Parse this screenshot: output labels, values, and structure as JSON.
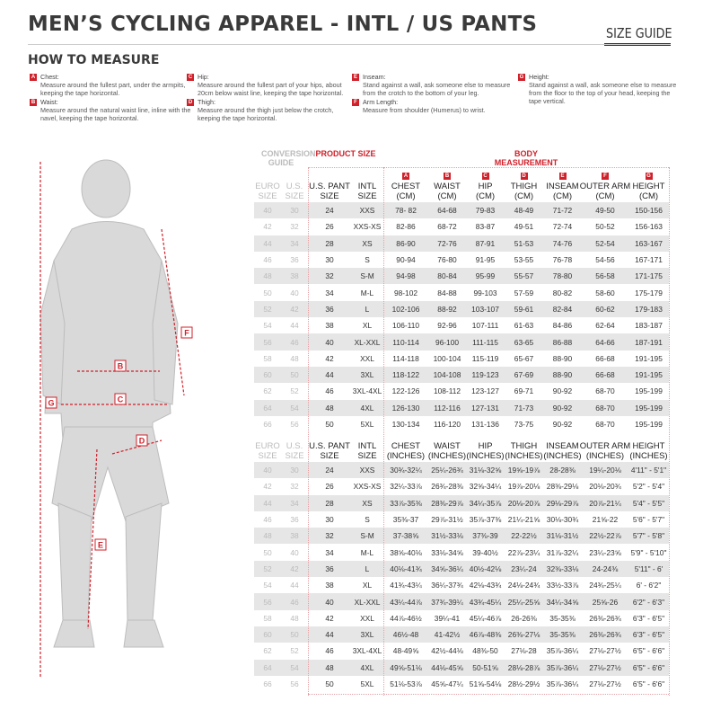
{
  "title": "MEN’S CYCLING APPAREL - INTL / US PANTS",
  "size_guide": "SIZE GUIDE",
  "how_to_measure": "HOW TO MEASURE",
  "instructions": [
    {
      "letter": "A",
      "label": "Chest:",
      "text": "Measure around the fullest part, under the armpits, keeping the tape horizontal."
    },
    {
      "letter": "B",
      "label": "Waist:",
      "text": "Measure around the natural waist line, inline with the navel, keeping the tape horizontal."
    },
    {
      "letter": "C",
      "label": "Hip:",
      "text": "Measure around the fullest part of your hips, about 20cm below waist line, keeping the tape horizontal."
    },
    {
      "letter": "D",
      "label": "Thigh:",
      "text": "Measure around the thigh just below the crotch, keeping the tape horizontal."
    },
    {
      "letter": "E",
      "label": "Inseam:",
      "text": "Stand against a wall, ask someone else to measure from the crotch to the bottom of your leg."
    },
    {
      "letter": "F",
      "label": "Arm Length:",
      "text": "Measure from shoulder (Humerus) to wrist."
    },
    {
      "letter": "G",
      "label": "Height:",
      "text": "Stand against a wall, ask someone else to measure from the floor to the top of your head, keeping the tape vertical."
    }
  ],
  "figure": {
    "labels": [
      "B",
      "C",
      "D",
      "E",
      "F",
      "G"
    ]
  },
  "colors": {
    "accent": "#d0202a",
    "row_shade": "#e6e6e6",
    "conversion_text": "#bbbbbb"
  },
  "groups": {
    "conversion": "CONVERSION GUIDE",
    "product": "PRODUCT SIZE",
    "body": "BODY MEASUREMENT"
  },
  "letters": [
    "A",
    "B",
    "C",
    "D",
    "E",
    "F",
    "G"
  ],
  "cm_headers": [
    "EURO SIZE",
    "U.S. SIZE",
    "U.S. PANT SIZE",
    "INTL SIZE",
    "CHEST (CM)",
    "WAIST (CM)",
    "HIP (CM)",
    "THIGH (CM)",
    "INSEAM (CM)",
    "OUTER ARM (CM)",
    "HEIGHT (CM)"
  ],
  "in_headers": [
    "EURO SIZE",
    "U.S. SIZE",
    "U.S. PANT SIZE",
    "INTL SIZE",
    "CHEST (INCHES)",
    "WAIST (INCHES)",
    "HIP (INCHES)",
    "THIGH (INCHES)",
    "INSEAM (INCHES)",
    "OUTER ARM (INCHES)",
    "HEIGHT (INCHES)"
  ],
  "cm_rows": [
    [
      "40",
      "30",
      "24",
      "XXS",
      "78- 82",
      "64-68",
      "79-83",
      "48-49",
      "71-72",
      "49-50",
      "150-156"
    ],
    [
      "42",
      "32",
      "26",
      "XXS-XS",
      "82-86",
      "68-72",
      "83-87",
      "49-51",
      "72-74",
      "50-52",
      "156-163"
    ],
    [
      "44",
      "34",
      "28",
      "XS",
      "86-90",
      "72-76",
      "87-91",
      "51-53",
      "74-76",
      "52-54",
      "163-167"
    ],
    [
      "46",
      "36",
      "30",
      "S",
      "90-94",
      "76-80",
      "91-95",
      "53-55",
      "76-78",
      "54-56",
      "167-171"
    ],
    [
      "48",
      "38",
      "32",
      "S-M",
      "94-98",
      "80-84",
      "95-99",
      "55-57",
      "78-80",
      "56-58",
      "171-175"
    ],
    [
      "50",
      "40",
      "34",
      "M-L",
      "98-102",
      "84-88",
      "99-103",
      "57-59",
      "80-82",
      "58-60",
      "175-179"
    ],
    [
      "52",
      "42",
      "36",
      "L",
      "102-106",
      "88-92",
      "103-107",
      "59-61",
      "82-84",
      "60-62",
      "179-183"
    ],
    [
      "54",
      "44",
      "38",
      "XL",
      "106-110",
      "92-96",
      "107-111",
      "61-63",
      "84-86",
      "62-64",
      "183-187"
    ],
    [
      "56",
      "46",
      "40",
      "XL-XXL",
      "110-114",
      "96-100",
      "111-115",
      "63-65",
      "86-88",
      "64-66",
      "187-191"
    ],
    [
      "58",
      "48",
      "42",
      "XXL",
      "114-118",
      "100-104",
      "115-119",
      "65-67",
      "88-90",
      "66-68",
      "191-195"
    ],
    [
      "60",
      "50",
      "44",
      "3XL",
      "118-122",
      "104-108",
      "119-123",
      "67-69",
      "88-90",
      "66-68",
      "191-195"
    ],
    [
      "62",
      "52",
      "46",
      "3XL-4XL",
      "122-126",
      "108-112",
      "123-127",
      "69-71",
      "90-92",
      "68-70",
      "195-199"
    ],
    [
      "64",
      "54",
      "48",
      "4XL",
      "126-130",
      "112-116",
      "127-131",
      "71-73",
      "90-92",
      "68-70",
      "195-199"
    ],
    [
      "66",
      "56",
      "50",
      "5XL",
      "130-134",
      "116-120",
      "131-136",
      "73-75",
      "90-92",
      "68-70",
      "195-199"
    ]
  ],
  "in_rows": [
    [
      "40",
      "30",
      "24",
      "XXS",
      "30¾-32¼",
      "25¼-26¾",
      "31⅛-32⅝",
      "19⅝-19⅞",
      "28-28⅜",
      "19¼-20⅛",
      "4'11\" - 5'1\""
    ],
    [
      "42",
      "32",
      "26",
      "XXS-XS",
      "32¼-33⅞",
      "26¾-28⅜",
      "32⅝-34¼",
      "19⅞-20⅛",
      "28⅜-29⅛",
      "20⅛-20¾",
      "5'2\" - 5'4\""
    ],
    [
      "44",
      "34",
      "28",
      "XS",
      "33⅞-35⅜",
      "28⅜-29⅞",
      "34¼-35⅞",
      "20⅛-20⅞",
      "29⅛-29⅞",
      "20⅞-21¼",
      "5'4\" - 5'5\""
    ],
    [
      "46",
      "36",
      "30",
      "S",
      "35⅜-37",
      "29⅞-31½",
      "35⅞-37⅜",
      "21¼-21⅝",
      "30⅛-30¾",
      "21⅝-22",
      "5'6\" - 5'7\""
    ],
    [
      "48",
      "38",
      "32",
      "S-M",
      "37-38⅝",
      "31½-33⅛",
      "37⅜-39",
      "22-22½",
      "31⅛-31½",
      "22½-22⅞",
      "5'7\" - 5'8\""
    ],
    [
      "50",
      "40",
      "34",
      "M-L",
      "38⅝-40⅛",
      "33⅛-34⅝",
      "39-40½",
      "22⅞-23¼",
      "31⅞-32¼",
      "23¼-23⅝",
      "5'9\" - 5'10\""
    ],
    [
      "52",
      "42",
      "36",
      "L",
      "40⅛-41¾",
      "34⅝-36¼",
      "40½-42⅛",
      "23¼-24",
      "32⅜-33⅛",
      "24-24⅜",
      "5'11\" - 6'"
    ],
    [
      "54",
      "44",
      "38",
      "XL",
      "41¾-43¼",
      "36¼-37¾",
      "42⅛-43¾",
      "24⅛-24¾",
      "33½-33⅞",
      "24¾-25¼",
      "6' - 6'2\""
    ],
    [
      "56",
      "46",
      "40",
      "XL-XXL",
      "43¼-44⅞",
      "37¾-39¼",
      "43¾-45¼",
      "25¼-25⅝",
      "34¼-34⅝",
      "25⅝-26",
      "6'2\" - 6'3\""
    ],
    [
      "58",
      "48",
      "42",
      "XXL",
      "44⅞-46½",
      "39¼-41",
      "45¼-46⅞",
      "26-26⅜",
      "35-35⅜",
      "26⅜-26¾",
      "6'3\" - 6'5\""
    ],
    [
      "60",
      "50",
      "44",
      "3XL",
      "46½-48",
      "41-42½",
      "46⅞-48⅜",
      "26⅜-27⅛",
      "35-35⅜",
      "26⅜-26¾",
      "6'3\" - 6'5\""
    ],
    [
      "62",
      "52",
      "46",
      "3XL-4XL",
      "48-49⅝",
      "42½-44⅛",
      "48⅜-50",
      "27⅛-28",
      "35⅞-36¼",
      "27⅛-27½",
      "6'5\" - 6'6\""
    ],
    [
      "64",
      "54",
      "48",
      "4XL",
      "49⅝-51⅛",
      "44⅛-45⅝",
      "50-51⅝",
      "28⅛-28⅞",
      "35⅞-36¼",
      "27⅛-27½",
      "6'5\" - 6'6\""
    ],
    [
      "66",
      "56",
      "50",
      "5XL",
      "51⅛-53⅞",
      "45⅝-47¼",
      "51⅝-54⅛",
      "28½-29½",
      "35⅞-36¼",
      "27⅛-27½",
      "6'5\" - 6'6\""
    ]
  ]
}
